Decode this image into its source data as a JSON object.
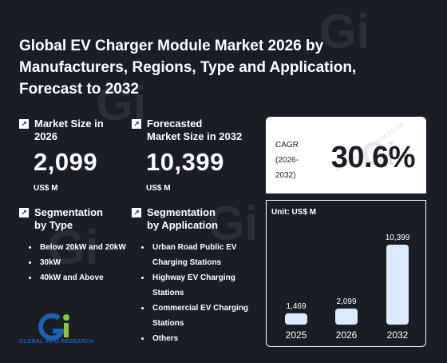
{
  "title": "Global EV Charger Module Market 2026 by Manufacturers, Regions, Type and Application, Forecast to 2032",
  "metrics": {
    "market_size": {
      "label": "Market Size in\n2026",
      "value": "2,099",
      "unit": "US$ M"
    },
    "forecast_size": {
      "label": "Forecasted\nMarket Size in 2032",
      "value": "10,399",
      "unit": "US$ M"
    }
  },
  "segmentation_type": {
    "label": "Segmentation\nby Type",
    "items": [
      "Below 20kW and 20kW",
      "30kW",
      "40kW and Above"
    ]
  },
  "segmentation_application": {
    "label": "Segmentation\nby Application",
    "items": [
      "Urban Road Public EV Charging Stations",
      "Highway EV Charging Stations",
      "Commercial EV Charging Stations",
      "Others"
    ]
  },
  "cagr": {
    "label": "CAGR\n(2026-\n2032)",
    "value": "30.6%"
  },
  "logo": {
    "text": "GLOBAL INFO RESEARCH",
    "watermark": "GLOBAL INFO RESEARCH"
  },
  "colors": {
    "background": "#1a1d23",
    "bar": "#dbeafe",
    "logo_blue": "#1f5fb4",
    "logo_green": "#8cc63f"
  },
  "chart_data": {
    "type": "bar",
    "unit_label": "Unit: US$ M",
    "categories": [
      "2025",
      "2026",
      "2032"
    ],
    "values": [
      1469,
      2099,
      10399
    ],
    "value_labels": [
      "1,469",
      "2,099",
      "10,399"
    ]
  }
}
